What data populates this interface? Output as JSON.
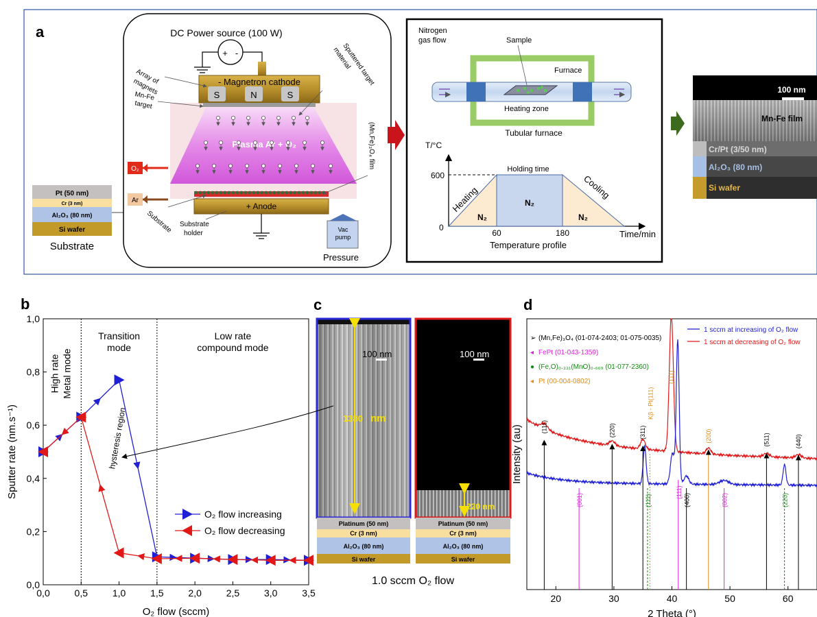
{
  "panel_labels": {
    "a": "a",
    "b": "b",
    "c": "c",
    "d": "d"
  },
  "panel_a": {
    "substrate_stack": {
      "pt": "Pt (50 nm)",
      "cr": "Cr (3 nm)",
      "al2o3": "Al₂O₃ (80 nm)",
      "si": "Si wafer"
    },
    "substrate_caption": "Substrate",
    "power_source": "DC Power source (100 W)",
    "plus": "+",
    "minus": "-",
    "array_of_magnets": [
      "Array of",
      "magnets"
    ],
    "magnetron_cathode": "- Magnetron cathode",
    "magnets": [
      "S",
      "N",
      "S"
    ],
    "sputtered_target": [
      "Sputtered target",
      "material"
    ],
    "mn_fe_target": [
      "Mn-Fe",
      "target"
    ],
    "plasma": "Plasma Ar + O₂",
    "film": "(Mn,Fe)₃O₄ film",
    "o2": "O₂",
    "ar": "Ar",
    "anode": "+ Anode",
    "substrate_diag": "Substrate",
    "substrate_holder": [
      "Substrate",
      "holder"
    ],
    "vac_pump": [
      "Vac",
      "pump"
    ],
    "pressure": "Pressure"
  },
  "panel_furnace": {
    "nitrogen_flow": [
      "Nitrogen",
      "gas flow"
    ],
    "sample": "Sample",
    "furnace": "Furnace",
    "heating_zone": "Heating zone",
    "tubular_furnace": "Tubular furnace",
    "y_label": "T/°C",
    "y_600": "600",
    "y_0": "0",
    "holding_time": "Holding time",
    "heating": "Heating",
    "cooling": "Cooling",
    "n2": "N₂",
    "x_60": "60",
    "x_180": "180",
    "x_label": "Time/min",
    "profile_caption": "Temperature profile"
  },
  "panel_sem_a": {
    "scale": "100 nm",
    "film": "Mn-Fe film",
    "crpt": "Cr/Pt (3/50 nm)",
    "al2o3": "Al₂O₃ (80 nm)",
    "si": "Si wafer"
  },
  "panel_c": {
    "scale_left": "100 nm",
    "scale_right": "100 nm",
    "thickness_left_value": "1380",
    "thickness_left_unit": "nm",
    "thickness_right": "220 nm",
    "stack": {
      "pt": "Platinum (50 nm)",
      "cr": "Cr  (3 nm)",
      "al2o3": "Al₂O₃ (80 nm)",
      "si": "Si wafer"
    },
    "caption": "1.0 sccm O₂ flow"
  },
  "colors": {
    "blue": "#1f1fd6",
    "red": "#e01818",
    "magenta": "#e020e0",
    "green": "#138a13",
    "orange": "#e08a14",
    "black": "#000000"
  },
  "chart_data": [
    {
      "type": "line",
      "panel": "b",
      "xlabel": "O₂ flow (sccm)",
      "ylabel": "Sputter rate (nm.s⁻¹)",
      "xlim": [
        0,
        3.5
      ],
      "ylim": [
        0,
        1.0
      ],
      "x_ticks": [
        "0,0",
        "0,5",
        "1,0",
        "1,5",
        "2,0",
        "2,5",
        "3,0",
        "3,5"
      ],
      "y_ticks": [
        "0,0",
        "0,2",
        "0,4",
        "0,6",
        "0,8",
        "1,0"
      ],
      "series": [
        {
          "name": "O₂ flow increasing",
          "color": "#1f1fd6",
          "x": [
            0.0,
            0.5,
            1.0,
            1.5,
            2.0,
            2.5,
            3.0,
            3.5
          ],
          "y": [
            0.5,
            0.63,
            0.77,
            0.105,
            0.1,
            0.095,
            0.095,
            0.092
          ]
        },
        {
          "name": "O₂ flow decreasing",
          "color": "#e01818",
          "x": [
            3.5,
            3.0,
            2.5,
            2.0,
            1.5,
            1.0,
            0.5,
            0.0
          ],
          "y": [
            0.092,
            0.092,
            0.095,
            0.1,
            0.098,
            0.12,
            0.63,
            0.5
          ]
        }
      ],
      "regions": [
        {
          "label": [
            "High rate",
            "Metal mode"
          ]
        },
        {
          "label": [
            "Transition",
            "mode"
          ]
        },
        {
          "label": [
            "Low rate",
            "compound mode"
          ]
        }
      ],
      "region_boundaries": [
        0.5,
        1.5
      ],
      "annotation": "hysteresis region",
      "legend": "bottom-right"
    },
    {
      "type": "line",
      "panel": "d",
      "xlabel": "2 Theta (°)",
      "ylabel": "Intensity (au)",
      "xlim": [
        15,
        65
      ],
      "x_ticks": [
        "20",
        "30",
        "40",
        "50",
        "60"
      ],
      "series": [
        {
          "name": "1 sccm at increasing of O₂ flow",
          "color": "#1f1fd6"
        },
        {
          "name": "1 sccm at decreasing of O₂ flow",
          "color": "#e01818"
        }
      ],
      "reference_legend": [
        {
          "symbol": "➢",
          "text": "(Mn,Fe)₃O₄ (01-074-2403; 01-075-0035)",
          "color": "#000000"
        },
        {
          "symbol": "◂",
          "text": "FePt (01-043-1359)",
          "color": "#e020e0"
        },
        {
          "symbol": "●",
          "text": "(Fe,O)₀.₃₃₁(MnO)₀.₆₆₉ (01-077-2360)",
          "color": "#138a13"
        },
        {
          "symbol": "◂",
          "text": "Pt (00-004-0802)",
          "color": "#e08a14"
        }
      ],
      "peaks_red": [
        {
          "x": 18.0,
          "label": "(111)",
          "color": "#000000"
        },
        {
          "x": 29.7,
          "label": "(220)",
          "color": "#000000"
        },
        {
          "x": 35.0,
          "label": "(311)",
          "color": "#000000"
        },
        {
          "x": 36.2,
          "label": "Kβ - Pt(111)",
          "color": "#e08a14"
        },
        {
          "x": 39.9,
          "label": "(111)",
          "color": "#e08a14"
        },
        {
          "x": 46.3,
          "label": "(200)",
          "color": "#e08a14"
        },
        {
          "x": 56.3,
          "label": "(511)",
          "color": "#000000"
        },
        {
          "x": 61.8,
          "label": "(440)",
          "color": "#000000"
        }
      ],
      "peaks_blue": [
        {
          "x": 24.0,
          "label": "(001)",
          "color": "#e020e0"
        },
        {
          "x": 35.8,
          "label": "(111)",
          "color": "#138a13"
        },
        {
          "x": 41.1,
          "label": "(111)",
          "color": "#e020e0"
        },
        {
          "x": 42.5,
          "label": "(400)",
          "color": "#000000"
        },
        {
          "x": 49.0,
          "label": "(002)",
          "color": "#e020e0"
        },
        {
          "x": 59.4,
          "label": "(220)",
          "color": "#138a13"
        }
      ]
    }
  ]
}
